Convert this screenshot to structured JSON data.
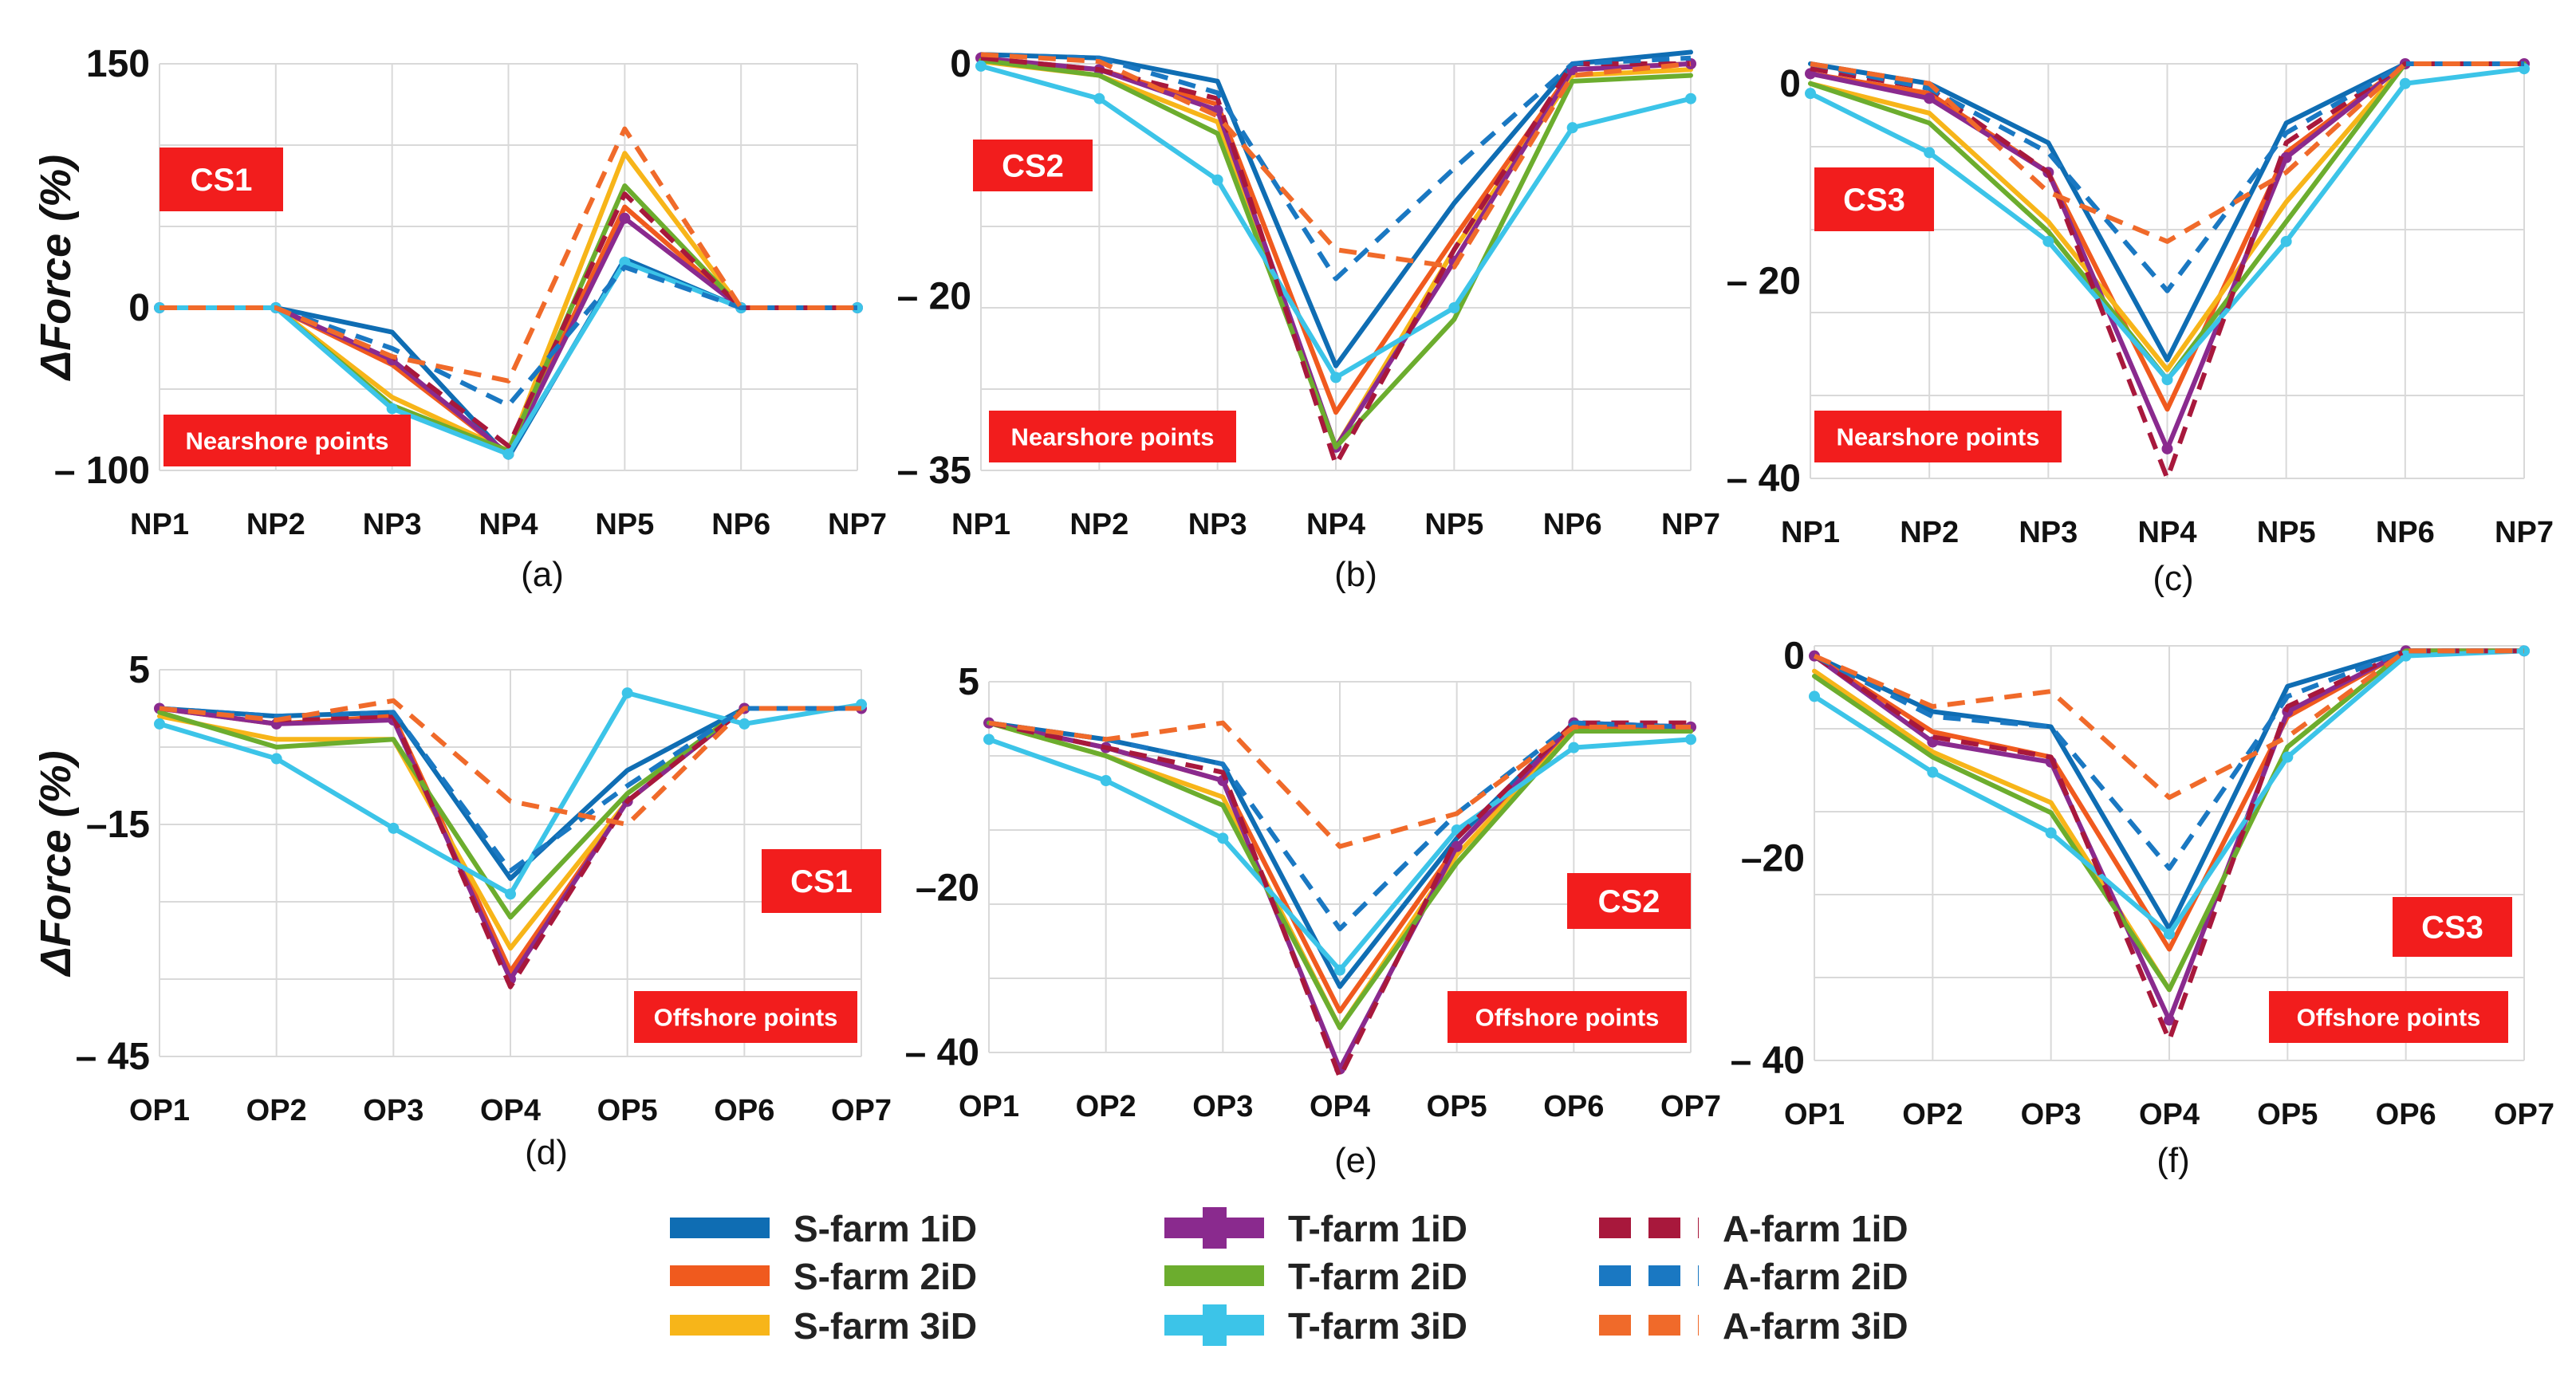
{
  "legend": [
    {
      "key": "S1",
      "label": "S-farm 1iD",
      "color": "#0f6db3",
      "style": "solid"
    },
    {
      "key": "S2",
      "label": "S-farm 2iD",
      "color": "#f05a1e",
      "style": "solid"
    },
    {
      "key": "S3",
      "label": "S-farm 3iD",
      "color": "#f7b519",
      "style": "solid"
    },
    {
      "key": "T1",
      "label": "T-farm 1iD",
      "color": "#8a2a8e",
      "style": "solid-marker"
    },
    {
      "key": "T2",
      "label": "T-farm 2iD",
      "color": "#6cad2e",
      "style": "solid"
    },
    {
      "key": "T3",
      "label": "T-farm 3iD",
      "color": "#3cc4e8",
      "style": "solid-marker"
    },
    {
      "key": "A1",
      "label": "A-farm 1iD",
      "color": "#a8183c",
      "style": "dashed"
    },
    {
      "key": "A2",
      "label": "A-farm 2iD",
      "color": "#1a78c2",
      "style": "dashed"
    },
    {
      "key": "A3",
      "label": "A-farm 3iD",
      "color": "#f06a2a",
      "style": "dashed"
    }
  ],
  "chart_data": [
    {
      "type": "line",
      "panel": "(a)",
      "case_label": "CS1",
      "zone_label": "Nearshore points",
      "ylabel": "ΔForce (%)",
      "show_ylabel": true,
      "ylim": [
        -100,
        150
      ],
      "ytick_labels": [
        "150",
        "0",
        "– 100"
      ],
      "ytick_values": [
        150,
        0,
        -100
      ],
      "categories": [
        "NP1",
        "NP2",
        "NP3",
        "NP4",
        "NP5",
        "NP6",
        "NP7"
      ],
      "series": [
        {
          "name": "S-farm 1iD",
          "values": [
            0,
            0,
            -15,
            -92,
            30,
            0,
            0
          ]
        },
        {
          "name": "S-farm 2iD",
          "values": [
            0,
            0,
            -35,
            -90,
            62,
            0,
            0
          ]
        },
        {
          "name": "S-farm 3iD",
          "values": [
            0,
            0,
            -55,
            -88,
            95,
            0,
            0
          ]
        },
        {
          "name": "T-farm 1iD",
          "values": [
            0,
            0,
            -32,
            -90,
            55,
            0,
            0
          ]
        },
        {
          "name": "T-farm 2iD",
          "values": [
            0,
            0,
            -60,
            -88,
            75,
            0,
            0
          ]
        },
        {
          "name": "T-farm 3iD",
          "values": [
            0,
            0,
            -62,
            -90,
            28,
            0,
            0
          ]
        },
        {
          "name": "A-farm 1iD",
          "values": [
            0,
            0,
            -30,
            -85,
            70,
            0,
            0
          ]
        },
        {
          "name": "A-farm 2iD",
          "values": [
            0,
            0,
            -25,
            -60,
            25,
            0,
            0
          ]
        },
        {
          "name": "A-farm 3iD",
          "values": [
            0,
            0,
            -30,
            -45,
            110,
            0,
            0
          ]
        }
      ]
    },
    {
      "type": "line",
      "panel": "(b)",
      "case_label": "CS2",
      "zone_label": "Nearshore points",
      "ylabel": "",
      "show_ylabel": false,
      "ylim": [
        -35,
        0
      ],
      "ytick_labels": [
        "0",
        "– 20",
        "– 35"
      ],
      "ytick_values": [
        0,
        -20,
        -35
      ],
      "categories": [
        "NP1",
        "NP2",
        "NP3",
        "NP4",
        "NP5",
        "NP6",
        "NP7"
      ],
      "series": [
        {
          "name": "S-farm 1iD",
          "values": [
            0.8,
            0.5,
            -1.5,
            -26,
            -12,
            0,
            1
          ]
        },
        {
          "name": "S-farm 2iD",
          "values": [
            0.3,
            -0.5,
            -3.5,
            -30,
            -15,
            -0.5,
            0
          ]
        },
        {
          "name": "S-farm 3iD",
          "values": [
            0.2,
            -1,
            -5,
            -33,
            -16,
            -1,
            -0.5
          ]
        },
        {
          "name": "T-farm 1iD",
          "values": [
            0.5,
            -0.5,
            -4,
            -33,
            -17,
            -0.5,
            0
          ]
        },
        {
          "name": "T-farm 2iD",
          "values": [
            0.3,
            -1,
            -6,
            -33,
            -22,
            -1.5,
            -1
          ]
        },
        {
          "name": "T-farm 3iD",
          "values": [
            -0.2,
            -3,
            -10,
            -27,
            -21,
            -5.5,
            -3
          ]
        },
        {
          "name": "A-farm 1iD",
          "values": [
            0.5,
            -0.5,
            -3,
            -34.5,
            -16,
            0,
            0
          ]
        },
        {
          "name": "A-farm 2iD",
          "values": [
            0.8,
            0.5,
            -2.5,
            -18.5,
            -9,
            0,
            0.5
          ]
        },
        {
          "name": "A-farm 3iD",
          "values": [
            0.8,
            0.2,
            -4.5,
            -16,
            -17.5,
            -1,
            0
          ]
        }
      ]
    },
    {
      "type": "line",
      "panel": "(c)",
      "case_label": "CS3",
      "zone_label": "Nearshore points",
      "ylabel": "",
      "show_ylabel": false,
      "ylim": [
        -40,
        2
      ],
      "ytick_labels": [
        "0",
        "– 20",
        "– 40"
      ],
      "ytick_values": [
        0,
        -20,
        -40
      ],
      "categories": [
        "NP1",
        "NP2",
        "NP3",
        "NP4",
        "NP5",
        "NP6",
        "NP7"
      ],
      "series": [
        {
          "name": "S-farm 1iD",
          "values": [
            2,
            0,
            -6,
            -28,
            -4,
            2,
            2
          ]
        },
        {
          "name": "S-farm 2iD",
          "values": [
            1,
            -1,
            -9,
            -33,
            -7,
            2,
            2
          ]
        },
        {
          "name": "S-farm 3iD",
          "values": [
            0,
            -3,
            -14,
            -29,
            -12,
            2,
            2
          ]
        },
        {
          "name": "T-farm 1iD",
          "values": [
            1,
            -1.5,
            -9,
            -37,
            -7.5,
            2,
            2
          ]
        },
        {
          "name": "T-farm 2iD",
          "values": [
            0,
            -4,
            -15,
            -30,
            -14,
            2,
            2
          ]
        },
        {
          "name": "T-farm 3iD",
          "values": [
            -1,
            -7,
            -16,
            -30,
            -16,
            0,
            1.5
          ]
        },
        {
          "name": "A-farm 1iD",
          "values": [
            1.5,
            -0.5,
            -9,
            -40,
            -6,
            2,
            2
          ]
        },
        {
          "name": "A-farm 2iD",
          "values": [
            2,
            -0.5,
            -7,
            -21,
            -5,
            2,
            2
          ]
        },
        {
          "name": "A-farm 3iD",
          "values": [
            2,
            0,
            -11,
            -16,
            -9,
            2,
            2
          ]
        }
      ]
    },
    {
      "type": "line",
      "panel": "(d)",
      "case_label": "CS1",
      "zone_label": "Offshore points",
      "ylabel": "ΔForce (%)",
      "show_ylabel": true,
      "ylim": [
        -45,
        5
      ],
      "ytick_labels": [
        "5",
        "–15",
        "– 45"
      ],
      "ytick_values": [
        5,
        -15,
        -45
      ],
      "categories": [
        "OP1",
        "OP2",
        "OP3",
        "OP4",
        "OP5",
        "OP6",
        "OP7"
      ],
      "series": [
        {
          "name": "S-farm 1iD",
          "values": [
            0,
            -1,
            -0.5,
            -22,
            -8,
            0,
            0
          ]
        },
        {
          "name": "S-farm 2iD",
          "values": [
            0,
            -2,
            -1,
            -34,
            -12,
            0,
            0
          ]
        },
        {
          "name": "S-farm 3iD",
          "values": [
            -1,
            -4,
            -4,
            -31,
            -12,
            0,
            0
          ]
        },
        {
          "name": "T-farm 1iD",
          "values": [
            0,
            -2,
            -1.5,
            -35,
            -12,
            0,
            0
          ]
        },
        {
          "name": "T-farm 2iD",
          "values": [
            -0.5,
            -5,
            -4,
            -27,
            -11,
            0,
            0
          ]
        },
        {
          "name": "T-farm 3iD",
          "values": [
            -2,
            -6.5,
            -15.5,
            -24,
            2,
            -2,
            0.5
          ]
        },
        {
          "name": "A-farm 1iD",
          "values": [
            0,
            -1.5,
            -1,
            -36,
            -12,
            0,
            0
          ]
        },
        {
          "name": "A-farm 2iD",
          "values": [
            0,
            -1,
            -0.5,
            -21,
            -10,
            0,
            0
          ]
        },
        {
          "name": "A-farm 3iD",
          "values": [
            0,
            -1.5,
            1,
            -12,
            -15,
            0,
            0
          ]
        }
      ]
    },
    {
      "type": "line",
      "panel": "(e)",
      "case_label": "CS2",
      "zone_label": "Offshore points",
      "ylabel": "",
      "show_ylabel": false,
      "ylim": [
        -40,
        5
      ],
      "ytick_labels": [
        "5",
        "–20",
        "– 40"
      ],
      "ytick_values": [
        5,
        -20,
        -40
      ],
      "categories": [
        "OP1",
        "OP2",
        "OP3",
        "OP4",
        "OP5",
        "OP6",
        "OP7"
      ],
      "series": [
        {
          "name": "S-farm 1iD",
          "values": [
            0,
            -2,
            -5,
            -32,
            -14,
            0,
            -0.5
          ]
        },
        {
          "name": "S-farm 2iD",
          "values": [
            0,
            -3,
            -7,
            -35,
            -15,
            -0.5,
            -1
          ]
        },
        {
          "name": "S-farm 3iD",
          "values": [
            0,
            -4,
            -9,
            -37,
            -16,
            -1,
            -1
          ]
        },
        {
          "name": "T-farm 1iD",
          "values": [
            0,
            -3,
            -7,
            -42,
            -15,
            0,
            -0.5
          ]
        },
        {
          "name": "T-farm 2iD",
          "values": [
            0,
            -4,
            -10,
            -37,
            -17,
            -1,
            -1
          ]
        },
        {
          "name": "T-farm 3iD",
          "values": [
            -2,
            -7,
            -14,
            -30,
            -13,
            -3,
            -2
          ]
        },
        {
          "name": "A-farm 1iD",
          "values": [
            0,
            -3,
            -6,
            -43,
            -14,
            0,
            0
          ]
        },
        {
          "name": "A-farm 2iD",
          "values": [
            0,
            -2,
            -5,
            -25,
            -11,
            0,
            -0.5
          ]
        },
        {
          "name": "A-farm 3iD",
          "values": [
            0,
            -2,
            0,
            -15,
            -11,
            -0.5,
            -0.5
          ]
        }
      ]
    },
    {
      "type": "line",
      "panel": "(f)",
      "case_label": "CS3",
      "zone_label": "Offshore points",
      "ylabel": "",
      "show_ylabel": false,
      "ylim": [
        -40,
        1
      ],
      "ytick_labels": [
        "0",
        "–20",
        "– 40"
      ],
      "ytick_values": [
        0,
        -20,
        -40
      ],
      "categories": [
        "OP1",
        "OP2",
        "OP3",
        "OP4",
        "OP5",
        "OP6",
        "OP7"
      ],
      "series": [
        {
          "name": "S-farm 1iD",
          "values": [
            0,
            -5.5,
            -7,
            -27,
            -3,
            0.5,
            0.5
          ]
        },
        {
          "name": "S-farm 2iD",
          "values": [
            0,
            -7.5,
            -10,
            -29,
            -6,
            0.5,
            0.5
          ]
        },
        {
          "name": "S-farm 3iD",
          "values": [
            -1.5,
            -9.5,
            -14.5,
            -33,
            -9,
            0.5,
            0.5
          ]
        },
        {
          "name": "T-farm 1iD",
          "values": [
            0,
            -8.5,
            -10.5,
            -36,
            -5.5,
            0.5,
            0.5
          ]
        },
        {
          "name": "T-farm 2iD",
          "values": [
            -2,
            -10,
            -15.5,
            -33,
            -9,
            0.5,
            0.5
          ]
        },
        {
          "name": "T-farm 3iD",
          "values": [
            -4,
            -11.5,
            -17.5,
            -27.5,
            -10,
            0,
            0.5
          ]
        },
        {
          "name": "A-farm 1iD",
          "values": [
            0,
            -8,
            -10,
            -38,
            -5,
            0.5,
            0.5
          ]
        },
        {
          "name": "A-farm 2iD",
          "values": [
            0,
            -6,
            -7,
            -21,
            -4,
            0.5,
            0.5
          ]
        },
        {
          "name": "A-farm 3iD",
          "values": [
            0,
            -5,
            -3.5,
            -14,
            -8,
            0.5,
            0.5
          ]
        }
      ]
    }
  ]
}
